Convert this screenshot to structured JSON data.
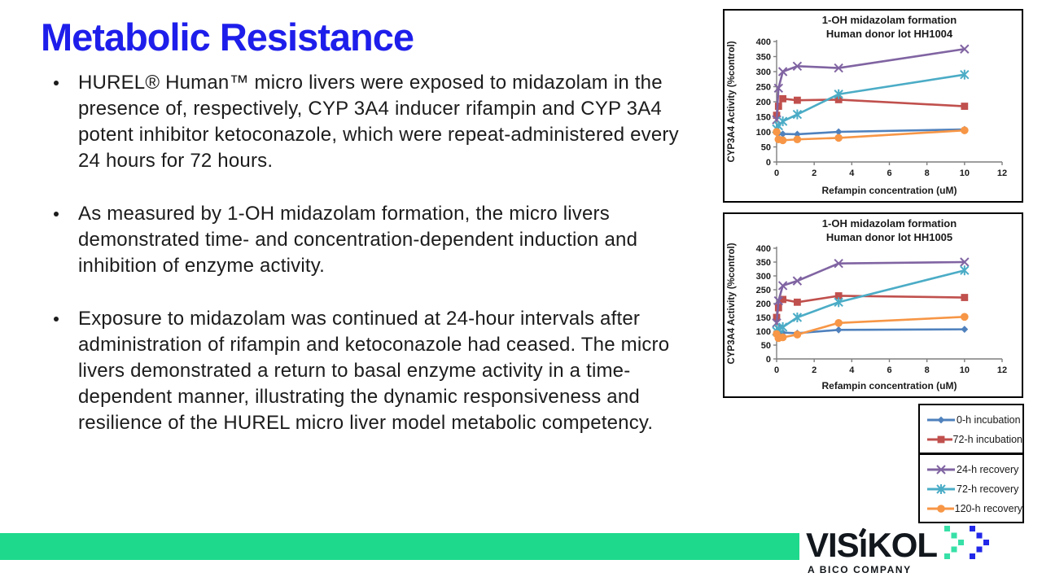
{
  "slide": {
    "title": "Metabolic Resistance"
  },
  "bullets": [
    "HUREL® Human™ micro livers were exposed to midazolam in the presence of, respectively, CYP 3A4 inducer rifampin and CYP 3A4 potent inhibitor ketoconazole, which were repeat-administered every 24 hours for 72 hours.",
    "As measured by 1-OH midazolam formation, the micro livers demonstrated time- and concentration-dependent induction and inhibition of enzyme activity.",
    "Exposure to midazolam was continued at 24-hour intervals after administration of rifampin and ketoconazole had ceased.  The micro livers demonstrated a return to basal enzyme activity in a time-dependent manner, illustrating the dynamic responsiveness and resilience of the HUREL micro liver model metabolic competency."
  ],
  "colors": {
    "title_blue": "#1e1eeb",
    "footer_green": "#1ed98c",
    "chevron_green": "#37e0a7",
    "chevron_blue": "#2228e8",
    "logo_dark": "#12171d",
    "series_blue": "#4F81BD",
    "series_red": "#C0504D",
    "series_purple": "#8064A2",
    "series_teal": "#4BACC6",
    "series_orange": "#F79646"
  },
  "chart_data": [
    {
      "type": "line",
      "title": "1-OH midazolam formation",
      "subtitle": "Human donor lot HH1004",
      "xlabel": "Refampin concentration (uM)",
      "ylabel": "CYP3A4 Activity (%control)",
      "xlim": [
        0,
        12
      ],
      "ylim": [
        0,
        400
      ],
      "xticks": [
        0,
        2,
        4,
        6,
        8,
        10,
        12
      ],
      "yticks": [
        0,
        50,
        100,
        150,
        200,
        250,
        300,
        350,
        400
      ],
      "grid": false,
      "legend_position": "external",
      "x": [
        0,
        0.1,
        0.33,
        1.1,
        3.3,
        10
      ],
      "series": [
        {
          "name": "0-h incubation",
          "color": "#4F81BD",
          "marker": "diamond",
          "values": [
            105,
            95,
            93,
            92,
            100,
            108
          ]
        },
        {
          "name": "72-h incubation",
          "color": "#C0504D",
          "marker": "square",
          "values": [
            155,
            185,
            210,
            205,
            207,
            185
          ]
        },
        {
          "name": "24-h recovery",
          "color": "#8064A2",
          "marker": "x",
          "values": [
            140,
            245,
            300,
            318,
            312,
            375
          ]
        },
        {
          "name": "72-h recovery",
          "color": "#4BACC6",
          "marker": "asterisk",
          "values": [
            110,
            120,
            135,
            158,
            225,
            290
          ]
        },
        {
          "name": "120-h recovery",
          "color": "#F79646",
          "marker": "circle",
          "values": [
            100,
            75,
            72,
            75,
            80,
            105
          ]
        }
      ]
    },
    {
      "type": "line",
      "title": "1-OH midazolam formation",
      "subtitle": "Human donor lot HH1005",
      "xlabel": "Refampin concentration (uM)",
      "ylabel": "CYP3A4 Activity (%control)",
      "xlim": [
        0,
        12
      ],
      "ylim": [
        0,
        400
      ],
      "xticks": [
        0,
        2,
        4,
        6,
        8,
        10,
        12
      ],
      "yticks": [
        0,
        50,
        100,
        150,
        200,
        250,
        300,
        350,
        400
      ],
      "grid": false,
      "legend_position": "external",
      "x": [
        0,
        0.1,
        0.33,
        1.1,
        3.3,
        10
      ],
      "series": [
        {
          "name": "0-h incubation",
          "color": "#4F81BD",
          "marker": "diamond",
          "values": [
            95,
            95,
            95,
            93,
            105,
            107
          ]
        },
        {
          "name": "72-h incubation",
          "color": "#C0504D",
          "marker": "square",
          "values": [
            150,
            185,
            215,
            205,
            228,
            222
          ]
        },
        {
          "name": "24-h recovery",
          "color": "#8064A2",
          "marker": "x",
          "values": [
            130,
            210,
            265,
            282,
            345,
            350
          ]
        },
        {
          "name": "72-h recovery",
          "color": "#4BACC6",
          "marker": "asterisk",
          "values": [
            100,
            108,
            115,
            150,
            205,
            320
          ]
        },
        {
          "name": "120-h recovery",
          "color": "#F79646",
          "marker": "circle",
          "values": [
            90,
            75,
            78,
            88,
            130,
            152
          ]
        }
      ]
    }
  ],
  "legend": {
    "groups": [
      [
        {
          "label": "0-h incubation",
          "color": "#4F81BD",
          "marker": "diamond"
        },
        {
          "label": "72-h incubation",
          "color": "#C0504D",
          "marker": "square"
        }
      ],
      [
        {
          "label": "24-h recovery",
          "color": "#8064A2",
          "marker": "x"
        },
        {
          "label": "72-h recovery",
          "color": "#4BACC6",
          "marker": "asterisk"
        },
        {
          "label": "120-h recovery",
          "color": "#F79646",
          "marker": "circle"
        }
      ]
    ]
  },
  "footer": {
    "logo_pre": "VIS",
    "logo_i": "ı",
    "logo_post": "KOL",
    "tagline": "A BICO COMPANY"
  }
}
